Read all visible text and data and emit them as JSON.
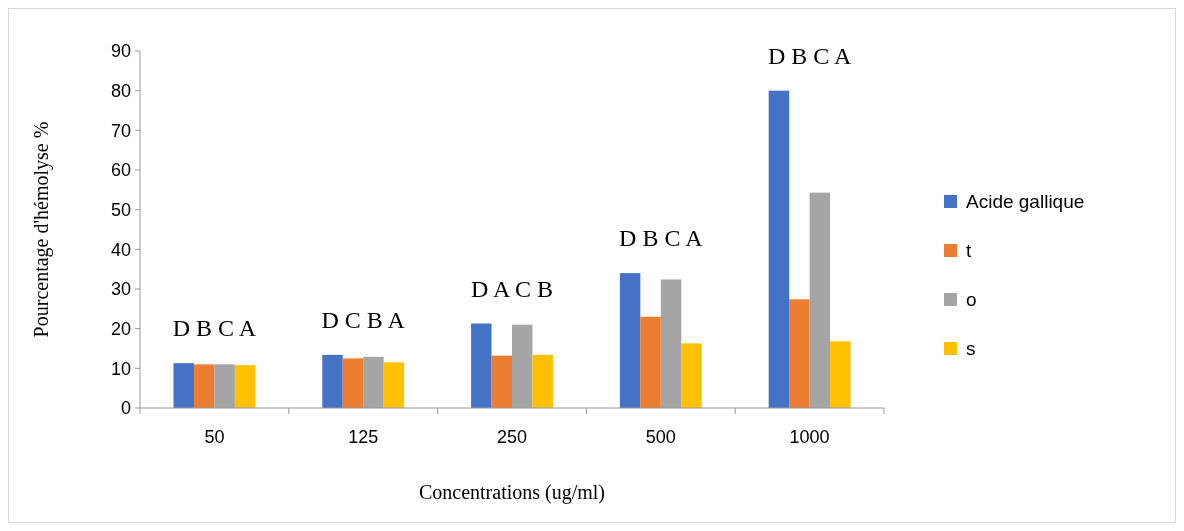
{
  "chart_data": {
    "type": "bar",
    "xlabel": "Concentrations (ug/ml)",
    "ylabel": "Pourcentage d'hémolyse %",
    "categories": [
      "50",
      "125",
      "250",
      "500",
      "1000"
    ],
    "series": [
      {
        "name": "Acide gallique",
        "color": "#4472c4",
        "values": [
          11.3,
          13.4,
          21.3,
          34.0,
          80.0
        ]
      },
      {
        "name": "t",
        "color": "#ed7d31",
        "values": [
          11.0,
          12.5,
          13.2,
          23.0,
          27.4
        ]
      },
      {
        "name": "o",
        "color": "#a5a5a5",
        "values": [
          11.0,
          12.9,
          21.0,
          32.4,
          54.3
        ]
      },
      {
        "name": "s",
        "color": "#ffc000",
        "values": [
          10.8,
          11.5,
          13.4,
          16.3,
          16.8
        ]
      }
    ],
    "ylim": [
      0,
      90
    ],
    "yticks": [
      0,
      10,
      20,
      30,
      40,
      50,
      60,
      70,
      80,
      90
    ],
    "grid": false,
    "legend": "right",
    "annotations": [
      "D B C A",
      "D C B A",
      "D A C B",
      "D B C A",
      "D B C A"
    ]
  }
}
